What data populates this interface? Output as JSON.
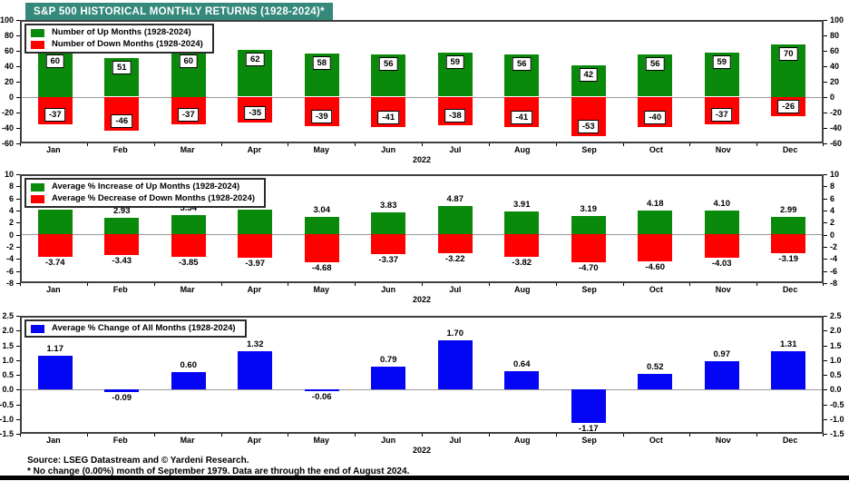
{
  "title": "S&P 500 HISTORICAL MONTHLY RETURNS (1928-2024)*",
  "colors": {
    "title_bg": "#35897B",
    "title_text": "#FFFFFF",
    "up_green": "#0A8A0A",
    "down_red": "#FE0000",
    "all_blue": "#0505F5"
  },
  "footer": {
    "source": "Source: LSEG Datastream and © Yardeni Research.",
    "note": "* No change (0.00%) month of September 1979. Data are through the end of August 2024."
  },
  "chart_data": [
    {
      "type": "bar",
      "categories": [
        "Jan",
        "Feb",
        "Mar",
        "Apr",
        "May",
        "Jun",
        "Jul",
        "Aug",
        "Sep",
        "Oct",
        "Nov",
        "Dec"
      ],
      "series": [
        {
          "key": "up",
          "name": "Number of Up Months (1928-2024)",
          "color": "#0A8A0A",
          "values": [
            60,
            51,
            60,
            62,
            58,
            56,
            59,
            56,
            42,
            56,
            59,
            70
          ]
        },
        {
          "key": "down",
          "name": "Number of Down Months (1928-2024)",
          "color": "#FE0000",
          "values": [
            -37,
            -46,
            -37,
            -35,
            -39,
            -41,
            -38,
            -41,
            -53,
            -40,
            -37,
            -26
          ]
        }
      ],
      "ylim": [
        -60,
        100
      ],
      "yticks": [
        "100",
        "80",
        "60",
        "40",
        "20",
        "0",
        "-20",
        "-40",
        "-60"
      ],
      "xlabel": "2022",
      "value_labels": "boxed",
      "decimals": 0,
      "legend_position": "top-left",
      "grid": false
    },
    {
      "type": "bar",
      "categories": [
        "Jan",
        "Feb",
        "Mar",
        "Apr",
        "May",
        "Jun",
        "Jul",
        "Aug",
        "Sep",
        "Oct",
        "Nov",
        "Dec"
      ],
      "series": [
        {
          "key": "up",
          "name": "Average % Increase of Up Months (1928-2024)",
          "color": "#0A8A0A",
          "values": [
            4.19,
            2.93,
            3.34,
            4.31,
            3.04,
            3.83,
            4.87,
            3.91,
            3.19,
            4.18,
            4.1,
            2.99
          ]
        },
        {
          "key": "down",
          "name": "Average % Decrease of Down Months (1928-2024)",
          "color": "#FE0000",
          "values": [
            -3.74,
            -3.43,
            -3.85,
            -3.97,
            -4.68,
            -3.37,
            -3.22,
            -3.82,
            -4.7,
            -4.6,
            -4.03,
            -3.19
          ]
        }
      ],
      "ylim": [
        -8,
        10
      ],
      "yticks": [
        "10",
        "8",
        "6",
        "4",
        "2",
        "0",
        "-2",
        "-4",
        "-6",
        "-8"
      ],
      "xlabel": "2022",
      "value_labels": "plain",
      "decimals": 2,
      "legend_position": "top-left",
      "grid": false
    },
    {
      "type": "bar",
      "categories": [
        "Jan",
        "Feb",
        "Mar",
        "Apr",
        "May",
        "Jun",
        "Jul",
        "Aug",
        "Sep",
        "Oct",
        "Nov",
        "Dec"
      ],
      "series": [
        {
          "key": "all",
          "name": "Average % Change of All Months (1928-2024)",
          "color": "#0505F5",
          "values": [
            1.17,
            -0.09,
            0.6,
            1.32,
            -0.06,
            0.79,
            1.7,
            0.64,
            -1.17,
            0.52,
            0.97,
            1.31
          ]
        }
      ],
      "ylim": [
        -1.5,
        2.5
      ],
      "yticks": [
        "2.5",
        "2.0",
        "1.5",
        "1.0",
        "0.5",
        "0.0",
        "-0.5",
        "-1.0",
        "-1.5"
      ],
      "xlabel": "2022",
      "value_labels": "plain",
      "decimals": 2,
      "legend_position": "top-left",
      "grid": false
    }
  ]
}
